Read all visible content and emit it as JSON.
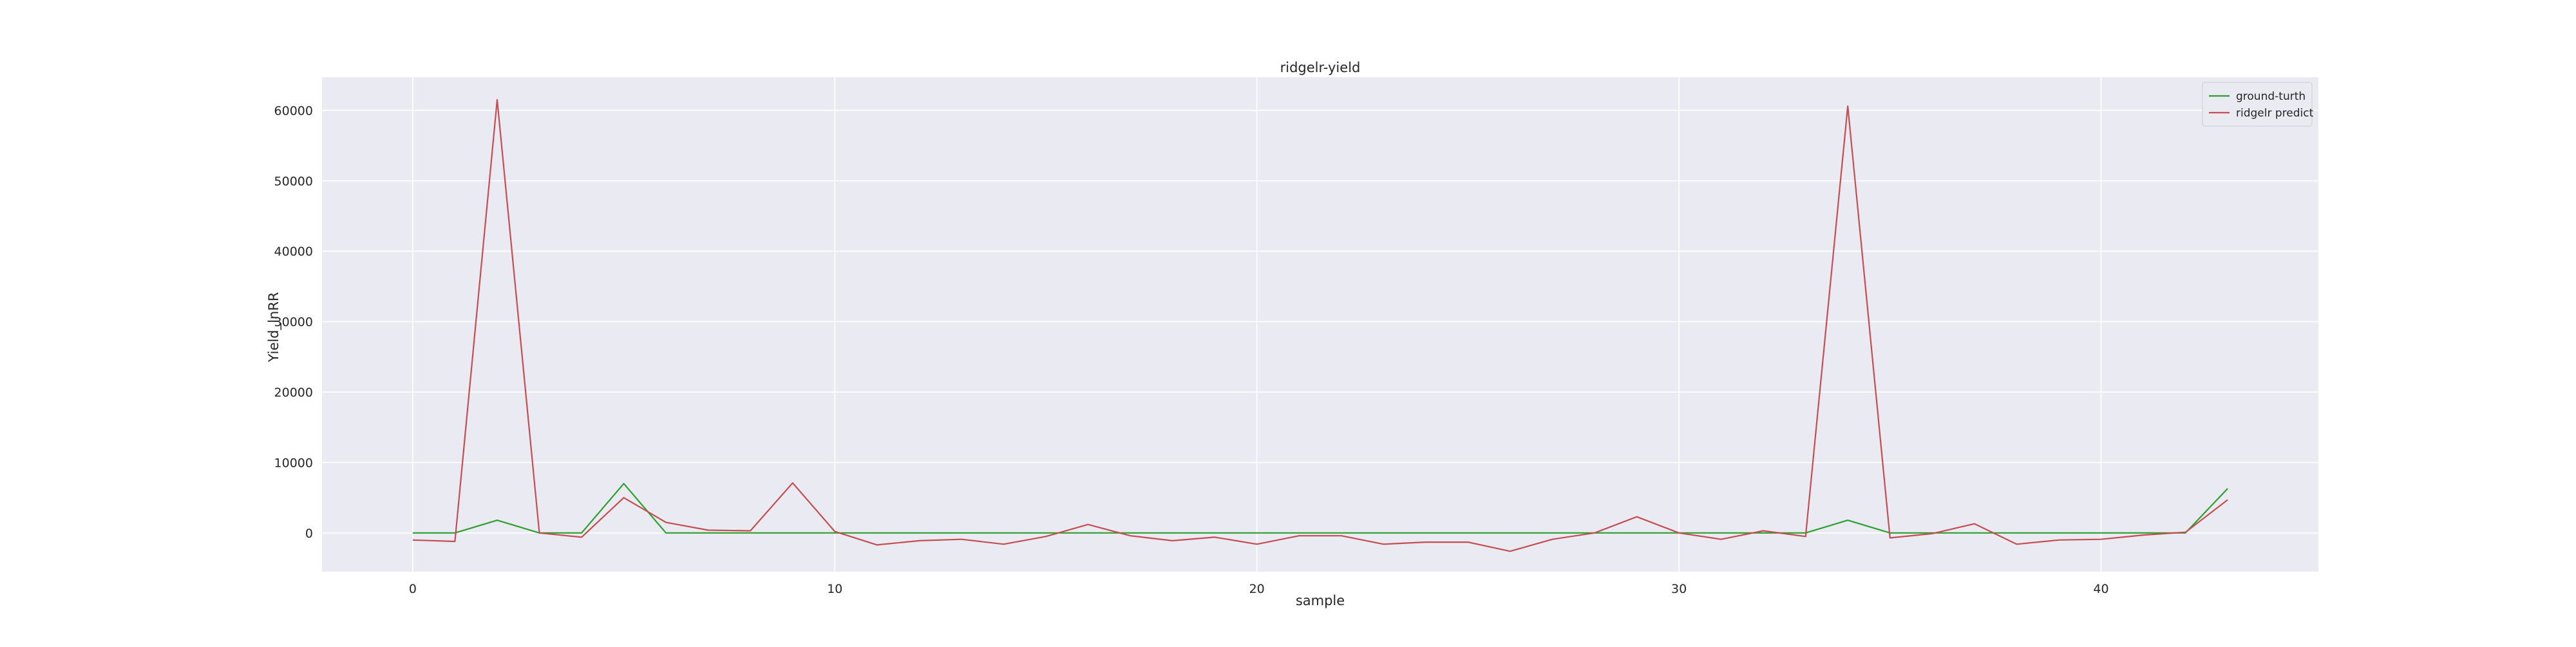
{
  "chart_data": {
    "type": "line",
    "title": "ridgelr-yield",
    "xlabel": "sample",
    "ylabel": "Yield_lnRR",
    "xlim": [
      -2.15,
      45.15
    ],
    "ylim": [
      -5500,
      64700
    ],
    "xticks": [
      0,
      10,
      20,
      30,
      40
    ],
    "yticks": [
      0,
      10000,
      20000,
      30000,
      40000,
      50000,
      60000
    ],
    "grid": true,
    "legend_position": "top-right",
    "background_color": "#eaeaf2",
    "grid_color": "#ffffff",
    "x": [
      0,
      1,
      2,
      3,
      4,
      5,
      6,
      7,
      8,
      9,
      10,
      11,
      12,
      13,
      14,
      15,
      16,
      17,
      18,
      19,
      20,
      21,
      22,
      23,
      24,
      25,
      26,
      27,
      28,
      29,
      30,
      31,
      32,
      33,
      34,
      35,
      36,
      37,
      38,
      39,
      40,
      41,
      42,
      43
    ],
    "series": [
      {
        "name": "ground-turth",
        "color": "#2ca02c",
        "values": [
          0,
          0,
          1800,
          0,
          0,
          7000,
          0,
          0,
          0,
          0,
          0,
          0,
          0,
          0,
          0,
          0,
          0,
          0,
          0,
          0,
          0,
          0,
          0,
          0,
          0,
          0,
          0,
          0,
          0,
          0,
          0,
          0,
          0,
          0,
          1800,
          0,
          0,
          0,
          0,
          0,
          0,
          0,
          0,
          6300
        ]
      },
      {
        "name": "ridgelr predict",
        "color": "#c44e52",
        "values": [
          -1000,
          -1200,
          61500,
          0,
          -600,
          5000,
          1500,
          400,
          300,
          7100,
          200,
          -1700,
          -1100,
          -900,
          -1600,
          -500,
          1200,
          -400,
          -1100,
          -600,
          -1600,
          -400,
          -400,
          -1600,
          -1300,
          -1300,
          -2600,
          -900,
          0,
          2300,
          0,
          -900,
          300,
          -500,
          60600,
          -700,
          -100,
          1300,
          -1600,
          -1000,
          -900,
          -300,
          100,
          4700
        ]
      }
    ]
  }
}
